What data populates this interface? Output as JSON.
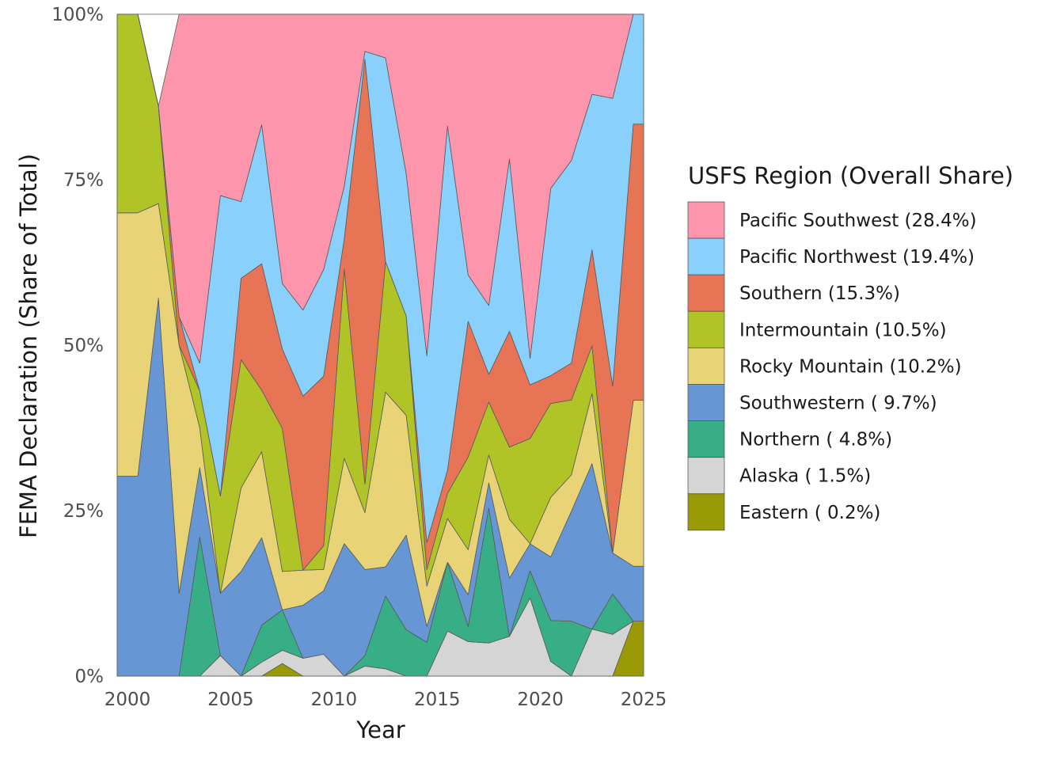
{
  "chart_data": {
    "type": "area",
    "stacked": true,
    "normalized": true,
    "xlabel": "Year",
    "ylabel": "FEMA Declaration (Share of Total)",
    "x_ticks": [
      "2000",
      "2005",
      "2010",
      "2015",
      "2020",
      "2025"
    ],
    "y_ticks": [
      "0%",
      "25%",
      "50%",
      "75%",
      "100%"
    ],
    "xlim": [
      1999.5,
      2025
    ],
    "ylim": [
      0,
      100
    ],
    "grid": false,
    "legend": {
      "title": "USFS Region (Overall Share)",
      "placement": "right"
    },
    "x": [
      1999.5,
      2000.5,
      2001.5,
      2002.5,
      2003.5,
      2004.5,
      2005.5,
      2006.5,
      2007.5,
      2008.5,
      2009.5,
      2010.5,
      2011.5,
      2012.5,
      2013.5,
      2014.5,
      2015.5,
      2016.5,
      2017.5,
      2018.5,
      2019.5,
      2020.5,
      2021.5,
      2022.5,
      2023.5,
      2024.5,
      2025
    ],
    "series": [
      {
        "name": "Eastern ( 0.2%)",
        "color": "#999a05",
        "values": [
          0,
          0,
          0,
          0,
          0,
          0,
          0,
          0,
          1.9,
          0,
          0,
          0,
          0,
          0,
          0,
          0,
          0,
          0,
          0,
          0,
          0,
          0,
          0,
          0,
          0,
          8.3,
          8.3
        ]
      },
      {
        "name": "Alaska ( 1.5%)",
        "color": "#d5d5d5",
        "values": [
          0,
          0,
          0,
          0,
          0,
          3.1,
          0,
          2.1,
          2.0,
          2.7,
          3.3,
          0,
          1.5,
          1.1,
          0,
          0,
          6.8,
          5.2,
          5.0,
          6.0,
          11.8,
          2.2,
          0,
          7.1,
          6.3,
          0,
          0
        ]
      },
      {
        "name": "Northern ( 4.8%)",
        "color": "#37ae85",
        "values": [
          0,
          0,
          0,
          0,
          21.0,
          0,
          0,
          5.6,
          6.1,
          0,
          0,
          0,
          1.6,
          11.0,
          7.0,
          5.1,
          10.4,
          2.3,
          20.4,
          0,
          4.1,
          6.2,
          8.3,
          0,
          6.1,
          0,
          0
        ]
      },
      {
        "name": "Southwestern ( 9.7%)",
        "color": "#6697d4",
        "values": [
          30.2,
          30.2,
          57.1,
          12.5,
          10.5,
          9.4,
          15.8,
          13.2,
          0,
          8.0,
          9.6,
          20.0,
          13.0,
          4.4,
          14.3,
          2.4,
          0,
          4.8,
          3.8,
          8.8,
          4.1,
          9.6,
          16.6,
          25.0,
          6.2,
          8.3,
          8.3
        ]
      },
      {
        "name": "Rocky Mountain (10.2%)",
        "color": "#e8d476",
        "values": [
          39.8,
          39.8,
          14.3,
          37.5,
          6.0,
          0,
          12.6,
          13.0,
          5.8,
          5.3,
          3.2,
          12.9,
          8.6,
          26.4,
          18.1,
          6.1,
          6.6,
          6.8,
          4.2,
          8.9,
          0,
          9.0,
          5.5,
          10.6,
          0,
          25.1,
          25.1
        ]
      },
      {
        "name": "Intermountain (10.5%)",
        "color": "#b0c427",
        "values": [
          30.0,
          30.0,
          14.7,
          0,
          5.6,
          14.7,
          19.4,
          9.3,
          21.6,
          0,
          3.6,
          28.6,
          4.3,
          19.7,
          15.0,
          2.5,
          3.8,
          14.0,
          8.0,
          10.9,
          15.9,
          14.2,
          11.3,
          7.2,
          0,
          0,
          0
        ]
      },
      {
        "name": "Southern (15.3%)",
        "color": "#e77555",
        "values": [
          0,
          0,
          0,
          4.3,
          0,
          0,
          12.3,
          19.1,
          12.0,
          26.3,
          25.6,
          4.6,
          64.2,
          0,
          0,
          4.1,
          3.5,
          20.5,
          4.2,
          17.5,
          8.1,
          4.2,
          5.6,
          14.5,
          25.2,
          41.7,
          41.7
        ]
      },
      {
        "name": "Pacific Northwest (19.4%)",
        "color": "#89d1fc",
        "values": [
          0,
          0,
          0,
          0,
          4.2,
          45.4,
          11.6,
          21.0,
          9.9,
          13.0,
          16.1,
          7.9,
          1.2,
          30.8,
          21.5,
          28.2,
          52.0,
          7.0,
          10.4,
          26.0,
          4.0,
          28.3,
          30.6,
          23.5,
          43.5,
          16.6,
          16.6
        ]
      },
      {
        "name": "Pacific Southwest (28.4%)",
        "color": "#fd95ad",
        "values": [
          0,
          0,
          0,
          45.7,
          52.7,
          27.4,
          28.3,
          16.7,
          40.7,
          44.7,
          38.6,
          26.0,
          5.6,
          6.6,
          24.1,
          51.6,
          16.9,
          39.4,
          44.0,
          21.9,
          52.0,
          26.3,
          22.1,
          12.1,
          12.7,
          0,
          0
        ]
      }
    ]
  }
}
